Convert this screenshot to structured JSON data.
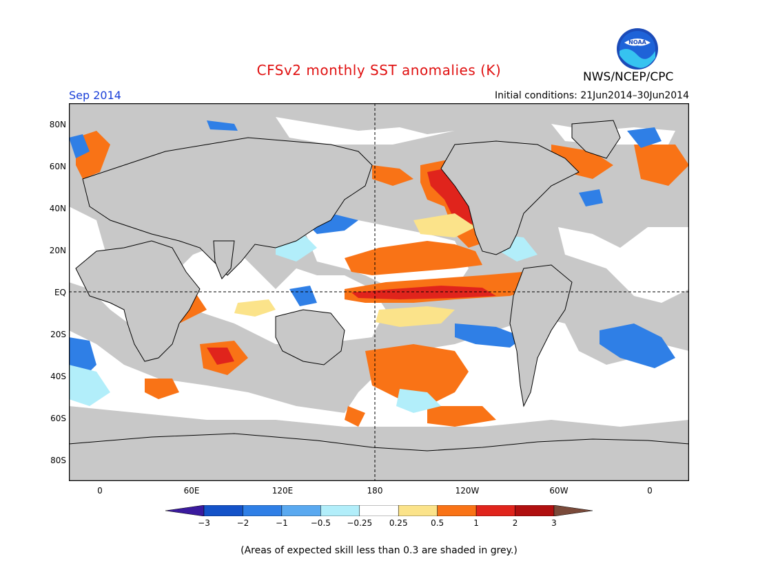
{
  "header": {
    "title": "CFSv2 monthly SST anomalies (K)",
    "agency": "NWS/NCEP/CPC",
    "logo_text": "NOAA",
    "month": "Sep 2014",
    "initial_conditions": "Initial conditions: 21Jun2014–30Jun2014"
  },
  "axes": {
    "lat_labels": [
      "80N",
      "60N",
      "40N",
      "20N",
      "EQ",
      "20S",
      "40S",
      "60S",
      "80S"
    ],
    "lon_labels": [
      "0",
      "60E",
      "120E",
      "180",
      "120W",
      "60W",
      "0"
    ]
  },
  "colorbar": {
    "labels": [
      "−3",
      "−2",
      "−1",
      "−0.5",
      "−0.25",
      "0.25",
      "0.5",
      "1",
      "2",
      "3"
    ],
    "colors": [
      "#3a1a9e",
      "#1452c8",
      "#2f7fe6",
      "#5aa9f0",
      "#b2eefa",
      "#ffffff",
      "#fbe38a",
      "#f97316",
      "#e0241c",
      "#b01010",
      "#7a4a3a"
    ]
  },
  "note": "(Areas of expected skill less than 0.3 are shaded in grey.)",
  "colors": {
    "land": "#c8c8c8",
    "title": "#e01010",
    "month": "#1a3fd8"
  }
}
